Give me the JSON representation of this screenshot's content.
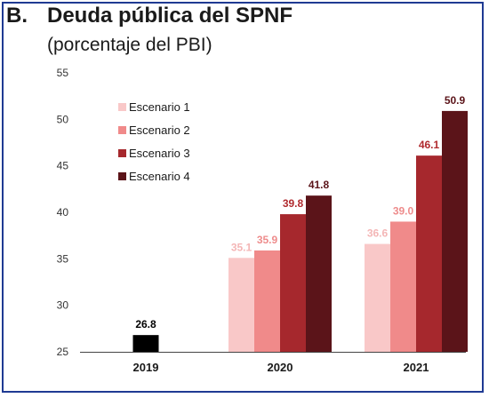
{
  "header": {
    "letter": "B.",
    "title": "Deuda pública del SPNF",
    "subtitle": "(porcentaje del PBI)"
  },
  "chart_data": {
    "type": "bar",
    "categories": [
      "2019",
      "2020",
      "2021"
    ],
    "ylim": [
      25,
      55
    ],
    "yticks": [
      25,
      30,
      35,
      40,
      45,
      50,
      55
    ],
    "grid": false,
    "legend_position": "top-left",
    "baseline_series": {
      "category": "2019",
      "value": 26.8,
      "label": "26.8",
      "color": "#000000",
      "label_color": "#000000"
    },
    "series": [
      {
        "name": "Escenario 1",
        "values": [
          null,
          35.1,
          36.6
        ],
        "labels": [
          "",
          "35.1",
          "36.6"
        ],
        "color": "#f9c8c8",
        "label_color": "#f4b6b6"
      },
      {
        "name": "Escenario 2",
        "values": [
          null,
          35.9,
          39.0
        ],
        "labels": [
          "",
          "35.9",
          "39.0"
        ],
        "color": "#f08a8a",
        "label_color": "#ee8c8c"
      },
      {
        "name": "Escenario 3",
        "values": [
          null,
          39.8,
          46.1
        ],
        "labels": [
          "",
          "39.8",
          "46.1"
        ],
        "color": "#a6282d",
        "label_color": "#b02a2e"
      },
      {
        "name": "Escenario 4",
        "values": [
          null,
          41.8,
          50.9
        ],
        "labels": [
          "",
          "41.8",
          "50.9"
        ],
        "color": "#5b1419",
        "label_color": "#5b1419"
      }
    ]
  }
}
